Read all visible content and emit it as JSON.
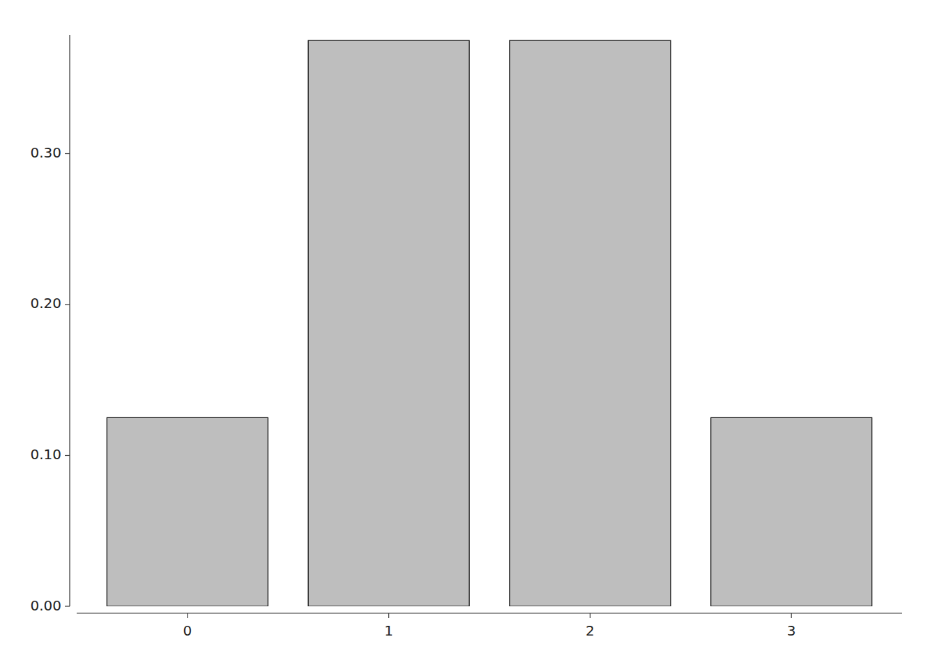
{
  "chart_data": {
    "type": "bar",
    "categories": [
      "0",
      "1",
      "2",
      "3"
    ],
    "values": [
      0.125,
      0.375,
      0.375,
      0.125
    ],
    "color": "#bebebe",
    "ylim": [
      0,
      0.37875
    ],
    "yticks": [
      {
        "value": 0.0,
        "label": "0.00"
      },
      {
        "value": 0.1,
        "label": "0.10"
      },
      {
        "value": 0.2,
        "label": "0.20"
      },
      {
        "value": 0.3,
        "label": "0.30"
      }
    ],
    "grid": false
  }
}
